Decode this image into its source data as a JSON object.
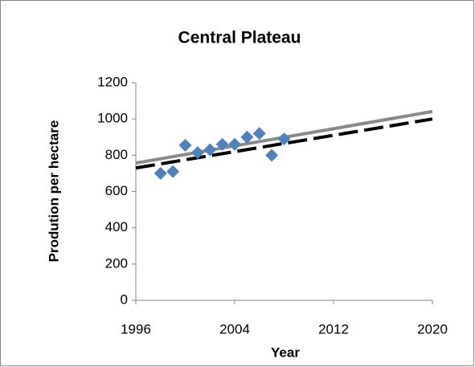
{
  "chart_data": {
    "type": "scatter",
    "title": "Central Plateau",
    "x_label": "Year",
    "y_label": "Prodution per hectare",
    "series": [
      {
        "color": "#4f81bd",
        "x": [
          1998,
          1999,
          2000,
          2001,
          2002,
          2003,
          2004,
          2005,
          2006,
          2007,
          2008
        ],
        "values": [
          700,
          710,
          855,
          815,
          830,
          860,
          860,
          900,
          920,
          800,
          890
        ]
      }
    ],
    "trend_lines": [
      {
        "color": "#000000",
        "dashed": true,
        "x": [
          1996,
          2020
        ],
        "values": [
          730,
          1000
        ]
      },
      {
        "color": "#898989",
        "dashed": false,
        "x": [
          1996,
          2020
        ],
        "values": [
          757,
          1041
        ]
      }
    ],
    "xlim": [
      1996,
      2020
    ],
    "xticks": [
      1996,
      2004,
      2012,
      2020
    ],
    "ylim": [
      0,
      1200
    ],
    "yticks": [
      0,
      200,
      400,
      600,
      800,
      1000,
      1200
    ],
    "grid": false
  }
}
